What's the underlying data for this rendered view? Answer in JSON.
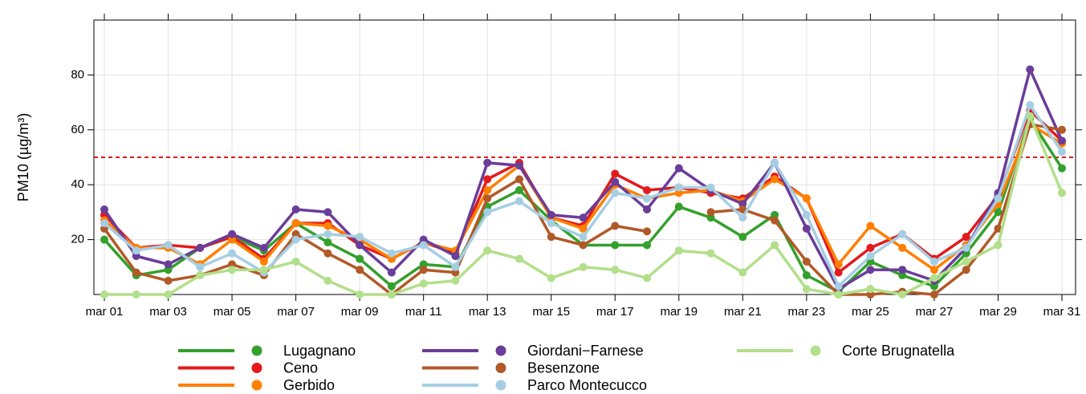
{
  "chart_data": {
    "type": "line",
    "y_label": "PM10 (µg/m³)",
    "categories": [
      "mar 01",
      null,
      "mar 03",
      null,
      "mar 05",
      null,
      "mar 07",
      null,
      "mar 09",
      null,
      "mar 11",
      null,
      "mar 13",
      null,
      "mar 15",
      null,
      "mar 17",
      null,
      "mar 19",
      null,
      "mar 21",
      null,
      "mar 23",
      null,
      "mar 25",
      null,
      "mar 27",
      null,
      "mar 29",
      null,
      "mar 31"
    ],
    "ylim": [
      0,
      100
    ],
    "yticks": [
      20,
      40,
      60,
      80
    ],
    "grid": true,
    "reference_line": {
      "value": 50,
      "color": "#e31a1c"
    },
    "legend": "bottom",
    "series": [
      {
        "name": "Lugagnano",
        "color": "#33a02c",
        "values": [
          20,
          7,
          9,
          17,
          21,
          16,
          26,
          19,
          13,
          3,
          11,
          10,
          32,
          38,
          27,
          18,
          18,
          18,
          32,
          28,
          21,
          29,
          7,
          1,
          12,
          7,
          3,
          15,
          30,
          64,
          46
        ]
      },
      {
        "name": "Ceno",
        "color": "#e31a1c",
        "values": [
          29,
          17,
          18,
          17,
          21,
          13,
          26,
          26,
          18,
          13,
          19,
          15,
          42,
          48,
          28,
          25,
          44,
          38,
          39,
          37,
          35,
          43,
          35,
          8,
          17,
          22,
          13,
          21,
          36,
          67,
          56
        ]
      },
      {
        "name": "Gerbido",
        "color": "#ff7f00",
        "values": [
          27,
          17,
          17,
          11,
          20,
          12,
          26,
          25,
          20,
          13,
          19,
          16,
          38,
          47,
          28,
          24,
          40,
          35,
          37,
          38,
          34,
          42,
          35,
          11,
          25,
          17,
          9,
          18,
          33,
          62,
          55
        ]
      },
      {
        "name": "Giordani−Farnese",
        "color": "#6a3d9a",
        "values": [
          31,
          14,
          11,
          17,
          22,
          17,
          31,
          30,
          18,
          8,
          20,
          14,
          48,
          47,
          29,
          28,
          41,
          31,
          46,
          38,
          33,
          48,
          24,
          2,
          9,
          9,
          5,
          17,
          37,
          82,
          56
        ]
      },
      {
        "name": "Besenzone",
        "color": "#b15928",
        "values": [
          24,
          8,
          5,
          7,
          11,
          7,
          22,
          15,
          9,
          0,
          9,
          8,
          35,
          42,
          21,
          18,
          25,
          23,
          null,
          30,
          31,
          27,
          12,
          0,
          0,
          1,
          0,
          9,
          24,
          62,
          60
        ]
      },
      {
        "name": "Parco Montecucco",
        "color": "#a6cee3",
        "values": [
          26,
          16,
          18,
          10,
          15,
          8,
          20,
          22,
          21,
          15,
          18,
          10,
          30,
          34,
          26,
          21,
          37,
          35,
          39,
          39,
          28,
          48,
          29,
          3,
          14,
          22,
          12,
          17,
          35,
          69,
          52
        ]
      },
      {
        "name": "Corte Brugnatella",
        "color": "#b2df8a",
        "values": [
          0,
          0,
          0,
          7,
          9,
          9,
          12,
          5,
          0,
          0,
          4,
          5,
          16,
          13,
          6,
          10,
          9,
          6,
          16,
          15,
          8,
          18,
          2,
          0,
          2,
          0,
          6,
          12,
          18,
          65,
          37
        ]
      }
    ]
  }
}
